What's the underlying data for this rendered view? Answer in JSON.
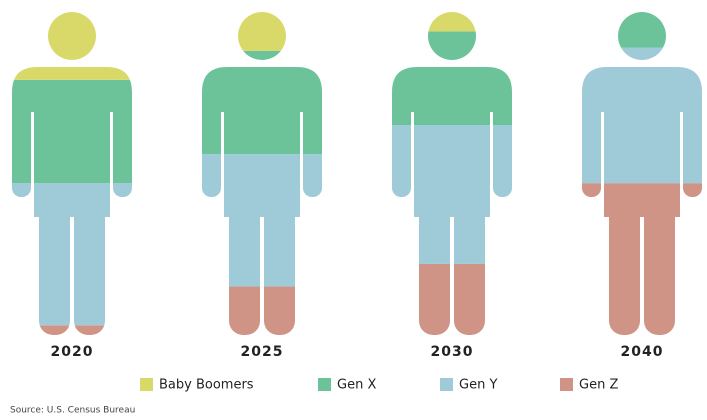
{
  "chart_data": {
    "type": "stacked_figure",
    "categories": [
      "2020",
      "2025",
      "2030",
      "2040"
    ],
    "series": [
      {
        "name": "Baby Boomers",
        "color": "#d9d96a",
        "values": [
          21,
          12,
          6,
          0
        ]
      },
      {
        "name": "Gen X",
        "color": "#6cc39a",
        "values": [
          32,
          32,
          29,
          11
        ]
      },
      {
        "name": "Gen Y",
        "color": "#9fcad8",
        "values": [
          44,
          41,
          43,
          42
        ]
      },
      {
        "name": "Gen Z",
        "color": "#d09486",
        "values": [
          3,
          15,
          22,
          47
        ]
      }
    ],
    "ylim": [
      0,
      100
    ],
    "source": "Source: U.S. Census Bureau"
  }
}
